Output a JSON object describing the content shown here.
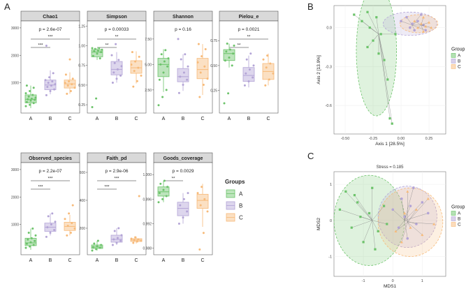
{
  "chart_data": {
    "panel_labels": {
      "a": "A",
      "b": "B",
      "c": "C"
    },
    "groups": [
      "A",
      "B",
      "C"
    ],
    "colors": {
      "A": "#6cc36a",
      "B": "#b3a4d6",
      "C": "#f7ba79"
    },
    "boxplots": [
      {
        "title": "Chao1",
        "pvalue": "p = 2.6e-07",
        "ticks": [
          1000,
          2000,
          3000
        ],
        "ylim": [
          0,
          3150
        ],
        "sig": [
          "***",
          "***"
        ],
        "stats": [
          [
            80,
            270,
            400,
            560,
            900
          ],
          [
            580,
            750,
            920,
            1100,
            1450
          ],
          [
            600,
            810,
            960,
            1100,
            1380
          ]
        ],
        "points": [
          [
            150,
            200,
            260,
            300,
            350,
            380,
            400,
            420,
            460,
            500,
            560,
            620,
            700,
            820,
            900
          ],
          [
            550,
            700,
            760,
            850,
            900,
            950,
            1000,
            1050,
            1100,
            1200,
            1350,
            2350
          ],
          [
            600,
            700,
            820,
            900,
            950,
            1000,
            1050,
            1150,
            1300,
            1850
          ]
        ]
      },
      {
        "title": "Simpson",
        "pvalue": "p = 0.00033",
        "ticks": [
          0.25,
          0.5,
          0.75,
          1.0,
          1.25
        ],
        "ylim": [
          0.18,
          1.28
        ],
        "sig": [
          "**",
          "**"
        ],
        "stats": [
          [
            0.82,
            0.86,
            0.92,
            0.95,
            0.97
          ],
          [
            0.53,
            0.63,
            0.7,
            0.8,
            0.92
          ],
          [
            0.52,
            0.65,
            0.72,
            0.81,
            0.93
          ]
        ],
        "points": [
          [
            0.22,
            0.33,
            0.84,
            0.87,
            0.9,
            0.92,
            0.93,
            0.94,
            0.95,
            0.96,
            0.97,
            0.97
          ],
          [
            0.53,
            0.58,
            0.62,
            0.66,
            0.7,
            0.74,
            0.78,
            0.82,
            0.88,
            1.02
          ],
          [
            0.48,
            0.55,
            0.62,
            0.68,
            0.72,
            0.76,
            0.8,
            0.86,
            0.92
          ]
        ]
      },
      {
        "title": "Shannon",
        "pvalue": "p = 0.16",
        "ticks": [
          2.5,
          5.0,
          7.5
        ],
        "ylim": [
          0.5,
          9.0
        ],
        "sig": [],
        "stats": [
          [
            2.3,
            3.8,
            5.0,
            5.6,
            6.5
          ],
          [
            2.4,
            3.3,
            3.8,
            4.6,
            6.0
          ],
          [
            2.0,
            3.6,
            4.5,
            5.6,
            7.0
          ]
        ],
        "points": [
          [
            1.0,
            1.8,
            2.5,
            3.5,
            4.2,
            4.8,
            5.0,
            5.3,
            5.6,
            6.0,
            6.4
          ],
          [
            2.2,
            3.0,
            3.5,
            3.8,
            4.2,
            4.8,
            5.5,
            6.0,
            7.5
          ],
          [
            1.8,
            3.0,
            3.6,
            4.2,
            4.8,
            5.2,
            5.8,
            6.5,
            7.0
          ]
        ]
      },
      {
        "title": "Pielou_e",
        "pvalue": "p = 0.0021",
        "ticks": [
          0.25,
          0.5,
          0.75
        ],
        "ylim": [
          0.05,
          0.92
        ],
        "sig": [
          "**",
          "**"
        ],
        "stats": [
          [
            0.48,
            0.55,
            0.62,
            0.66,
            0.72
          ],
          [
            0.28,
            0.34,
            0.4,
            0.48,
            0.6
          ],
          [
            0.3,
            0.36,
            0.44,
            0.52,
            0.62
          ]
        ],
        "points": [
          [
            0.12,
            0.22,
            0.5,
            0.55,
            0.58,
            0.62,
            0.64,
            0.66,
            0.7,
            0.72
          ],
          [
            0.3,
            0.34,
            0.38,
            0.42,
            0.46,
            0.5,
            0.56,
            0.62
          ],
          [
            0.3,
            0.36,
            0.42,
            0.48,
            0.52,
            0.56,
            0.6
          ]
        ]
      },
      {
        "title": "Observed_species",
        "pvalue": "p = 2.2e-07",
        "ticks": [
          1000,
          2000,
          3000
        ],
        "ylim": [
          0,
          3150
        ],
        "sig": [
          "***",
          "***"
        ],
        "stats": [
          [
            80,
            230,
            330,
            500,
            850
          ],
          [
            600,
            750,
            900,
            1050,
            1400
          ],
          [
            600,
            780,
            930,
            1080,
            1350
          ]
        ],
        "points": [
          [
            150,
            200,
            250,
            300,
            350,
            400,
            450,
            500,
            600,
            700,
            850
          ],
          [
            550,
            700,
            800,
            900,
            1000,
            1100,
            1300,
            1400
          ],
          [
            600,
            700,
            850,
            950,
            1050,
            1200,
            1400,
            1700
          ]
        ]
      },
      {
        "title": "Faith_pd",
        "pvalue": "p = 2.9e-06",
        "ticks": [
          200,
          400,
          600
        ],
        "ylim": [
          30,
          650
        ],
        "sig": [
          "***",
          "***"
        ],
        "stats": [
          [
            40,
            55,
            65,
            80,
            110
          ],
          [
            80,
            100,
            120,
            150,
            200
          ],
          [
            90,
            105,
            115,
            125,
            140
          ]
        ],
        "points": [
          [
            40,
            50,
            60,
            65,
            70,
            80,
            90,
            110
          ],
          [
            80,
            95,
            110,
            120,
            130,
            150,
            180,
            200
          ],
          [
            95,
            105,
            110,
            115,
            120,
            125,
            135,
            430
          ]
        ]
      },
      {
        "title": "Goods_coverage",
        "pvalue": "p = 0.0029",
        "ticks": [
          0.988,
          0.992,
          0.996,
          1.0
        ],
        "ylim": [
          0.9874,
          1.0015
        ],
        "sig": [
          "**"
        ],
        "stats": [
          [
            0.9955,
            0.9965,
            0.9972,
            0.998,
            0.999
          ],
          [
            0.992,
            0.9933,
            0.9945,
            0.9955,
            0.997
          ],
          [
            0.9915,
            0.9945,
            0.9958,
            0.9968,
            0.9985
          ]
        ],
        "points": [
          [
            0.9955,
            0.996,
            0.9965,
            0.997,
            0.9975,
            0.998,
            0.9985,
            0.999
          ],
          [
            0.992,
            0.993,
            0.994,
            0.995,
            0.996,
            0.997
          ],
          [
            0.9878,
            0.9905,
            0.994,
            0.995,
            0.996,
            0.997,
            0.998
          ]
        ]
      }
    ],
    "legend_bottom": {
      "title": "Groups",
      "items": [
        "A",
        "B",
        "C"
      ]
    },
    "pcoa": {
      "xlabel": "Axis 1 [28.5%]",
      "ylabel": "Axis 2 [13.9%]",
      "xticks": [
        -0.5,
        -0.25,
        0.0,
        0.25
      ],
      "xtick_labels": [
        "-0.50",
        "-0.25",
        "0.00",
        "0.25"
      ],
      "yticks": [
        0.0,
        -0.3,
        -0.6
      ],
      "ytick_labels": [
        "0.0",
        "-0.3",
        "-0.6"
      ],
      "xlim": [
        -0.6,
        0.4
      ],
      "ylim": [
        -0.82,
        0.17
      ],
      "legend_title": "Group",
      "legend_items": [
        "A",
        "B",
        "C"
      ],
      "centroids": [
        [
          -0.2,
          -0.05
        ],
        [
          0.1,
          0.02
        ],
        [
          0.18,
          0.02
        ]
      ],
      "points": [
        [
          [
            -0.42,
            0.1
          ],
          [
            -0.35,
            0.05
          ],
          [
            -0.3,
            0.12
          ],
          [
            -0.28,
            0.0
          ],
          [
            -0.25,
            -0.1
          ],
          [
            -0.22,
            0.08
          ],
          [
            -0.2,
            -0.2
          ],
          [
            -0.18,
            -0.05
          ],
          [
            -0.15,
            -0.25
          ],
          [
            -0.12,
            -0.4
          ],
          [
            -0.1,
            -0.7
          ],
          [
            -0.08,
            -0.74
          ],
          [
            -0.3,
            -0.15
          ],
          [
            -0.05,
            -0.05
          ]
        ],
        [
          [
            0.0,
            0.05
          ],
          [
            0.05,
            0.08
          ],
          [
            0.08,
            0.0
          ],
          [
            0.1,
            0.03
          ],
          [
            0.12,
            -0.02
          ],
          [
            0.15,
            0.05
          ],
          [
            0.18,
            0.1
          ],
          [
            0.2,
            0.02
          ],
          [
            0.22,
            -0.02
          ]
        ],
        [
          [
            0.12,
            0.05
          ],
          [
            0.15,
            0.0
          ],
          [
            0.18,
            0.03
          ],
          [
            0.2,
            0.08
          ],
          [
            0.22,
            0.01
          ],
          [
            0.25,
            0.04
          ],
          [
            0.27,
            0.0
          ],
          [
            0.2,
            -0.03
          ]
        ]
      ],
      "ellipses": [
        [
          -0.22,
          -0.18,
          0.18,
          0.5
        ],
        [
          0.08,
          0.03,
          0.24,
          0.09
        ],
        [
          0.16,
          0.03,
          0.17,
          0.07
        ]
      ]
    },
    "nmds": {
      "stress": "Stress = 0.185",
      "xlabel": "MDS1",
      "ylabel": "MDS2",
      "xticks": [
        -1,
        0,
        1
      ],
      "xtick_labels": [
        "-1",
        "0",
        "1"
      ],
      "yticks": [
        1,
        0,
        -1
      ],
      "ytick_labels": [
        "1",
        "0",
        "-1"
      ],
      "xlim": [
        -2.0,
        1.8
      ],
      "ylim": [
        -1.55,
        1.35
      ],
      "legend_title": "Group",
      "legend_items": [
        "A",
        "B",
        "C"
      ],
      "centroids": [
        [
          -0.7,
          0.0
        ],
        [
          0.4,
          0.0
        ],
        [
          0.5,
          -0.05
        ]
      ],
      "points": [
        [
          [
            -1.8,
            0.3
          ],
          [
            -1.6,
            0.8
          ],
          [
            -1.4,
            -0.2
          ],
          [
            -1.2,
            0.5
          ],
          [
            -1.0,
            -0.6
          ],
          [
            -0.8,
            0.2
          ],
          [
            -0.7,
            0.9
          ],
          [
            -0.5,
            -0.3
          ],
          [
            -0.3,
            0.4
          ],
          [
            -0.6,
            -0.8
          ],
          [
            -1.1,
            0.1
          ],
          [
            -0.2,
            -0.1
          ],
          [
            -1.3,
            0.7
          ]
        ],
        [
          [
            0.0,
            0.3
          ],
          [
            0.2,
            -0.2
          ],
          [
            0.3,
            0.6
          ],
          [
            0.4,
            0.1
          ],
          [
            0.5,
            -0.5
          ],
          [
            0.6,
            0.4
          ],
          [
            0.8,
            -0.1
          ],
          [
            1.0,
            0.5
          ],
          [
            0.7,
            0.9
          ],
          [
            1.2,
            0.2
          ]
        ],
        [
          [
            0.1,
            -0.3
          ],
          [
            0.3,
            -0.6
          ],
          [
            0.4,
            0.2
          ],
          [
            0.6,
            -0.2
          ],
          [
            0.8,
            0.3
          ],
          [
            1.0,
            -0.4
          ],
          [
            1.2,
            0.6
          ],
          [
            0.5,
            0.8
          ],
          [
            1.4,
            -0.1
          ]
        ]
      ],
      "ellipses": [
        [
          -0.8,
          0.0,
          1.2,
          1.25
        ],
        [
          0.5,
          0.1,
          1.0,
          0.85
        ],
        [
          0.6,
          -0.05,
          1.1,
          0.95
        ]
      ]
    }
  }
}
